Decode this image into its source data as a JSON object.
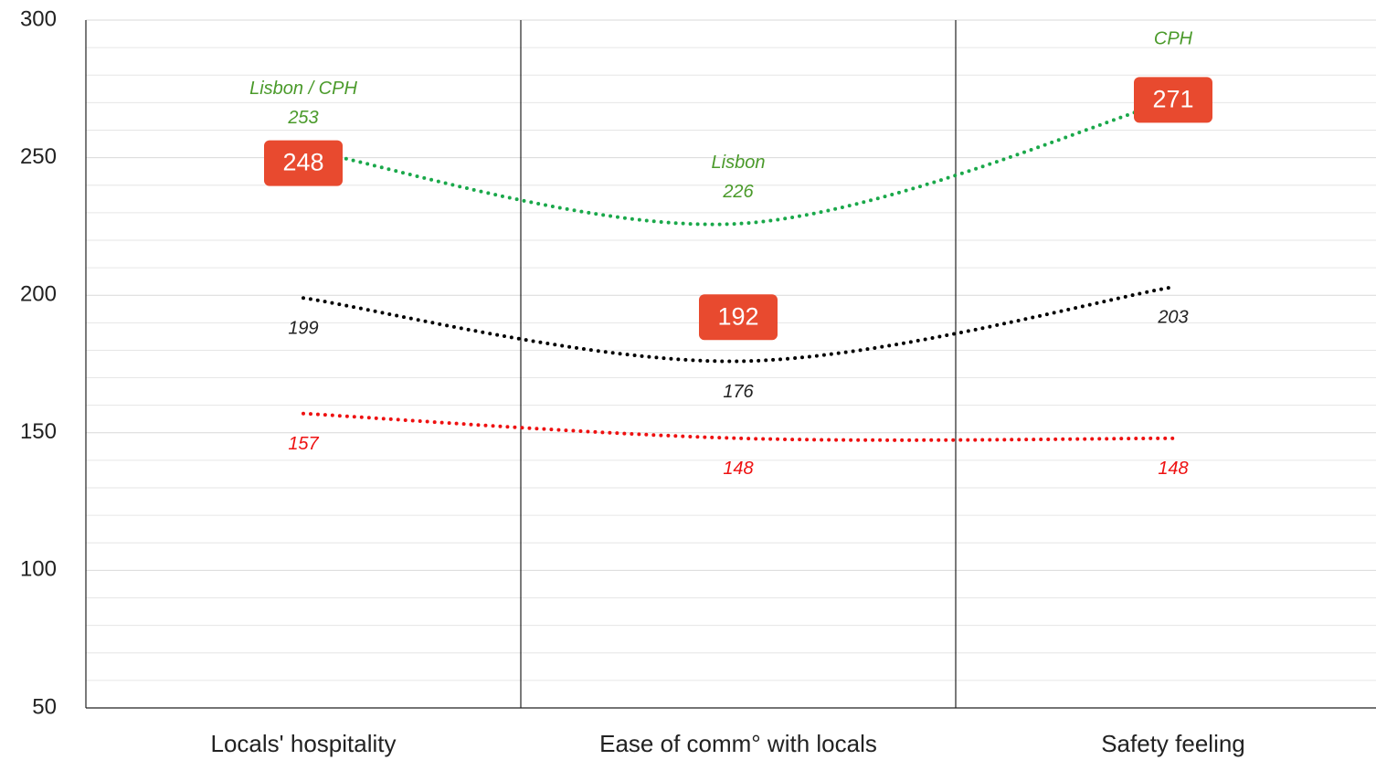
{
  "chart_data": {
    "type": "line",
    "categories": [
      "Locals' hospitality",
      "Ease of comm° with locals",
      "Safety feeling"
    ],
    "ylim": [
      50,
      300
    ],
    "yticks": [
      50,
      100,
      150,
      200,
      250,
      300
    ],
    "grid": true,
    "series": [
      {
        "color": "#1aa84a",
        "label_color": "#4a9a2a",
        "values": [
          253,
          226,
          271
        ],
        "value_labels": [
          "253",
          "226",
          null
        ],
        "point_labels": [
          "Lisbon / CPH",
          "Lisbon",
          "CPH"
        ],
        "label_position": "above"
      },
      {
        "color": "#000000",
        "label_color": "#222222",
        "values": [
          199,
          176,
          203
        ],
        "label_position": "below"
      },
      {
        "color": "#ee1111",
        "label_color": "#ee1111",
        "values": [
          157,
          148,
          148
        ],
        "label_position": "below"
      }
    ],
    "highlights": {
      "color": "#e84a2f",
      "values": [
        248,
        192,
        271
      ]
    }
  }
}
